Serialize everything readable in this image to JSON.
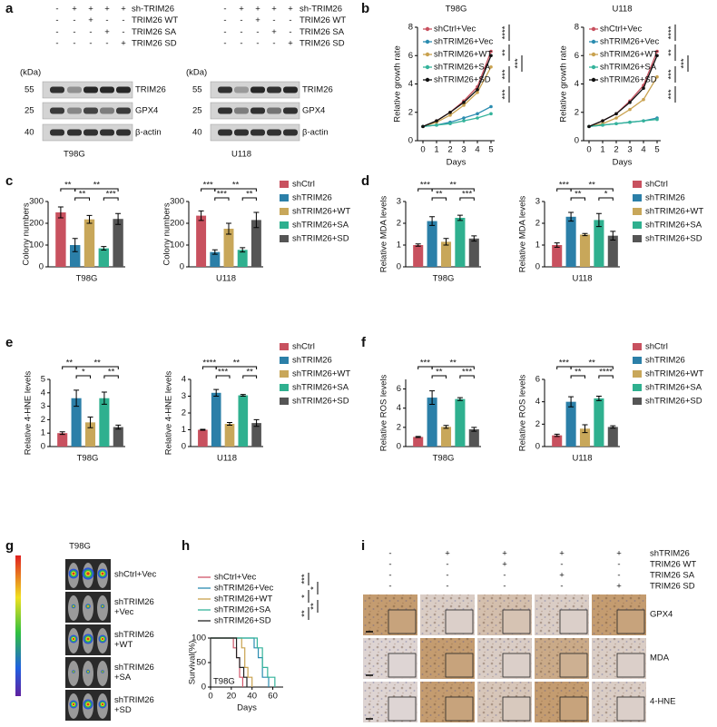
{
  "panel_labels": [
    "a",
    "b",
    "c",
    "d",
    "e",
    "f",
    "g",
    "h",
    "i"
  ],
  "western_blot": {
    "kda": "(kDa)",
    "treatments": [
      "sh-TRIM26",
      "TRIM26 WT",
      "TRIM26 SA",
      "TRIM26 SD"
    ],
    "signs": [
      [
        "-",
        "+",
        "+",
        "+",
        "+"
      ],
      [
        "-",
        "-",
        "+",
        "-",
        "-"
      ],
      [
        "-",
        "-",
        "-",
        "+",
        "-"
      ],
      [
        "-",
        "-",
        "-",
        "-",
        "+"
      ]
    ],
    "markers": [
      "55",
      "25",
      "40"
    ],
    "proteins": [
      "TRIM26",
      "GPX4",
      "β-actin"
    ],
    "cell_lines": [
      "T98G",
      "U118"
    ]
  },
  "imaging": {
    "title": "T98G",
    "groups": [
      [
        "shCtrl+Vec"
      ],
      [
        "shTRIM26",
        "+Vec"
      ],
      [
        "shTRIM26",
        "+WT"
      ],
      [
        "shTRIM26",
        "+SA"
      ],
      [
        "shTRIM26",
        "+SD"
      ]
    ]
  },
  "ihc": {
    "treatments": [
      "shTRIM26",
      "TRIM26 WT",
      "TRIM26 SA",
      "TRIM26 SD"
    ],
    "signs": [
      [
        "-",
        "+",
        "+",
        "+",
        "+"
      ],
      [
        "-",
        "-",
        "+",
        "-",
        "-"
      ],
      [
        "-",
        "-",
        "-",
        "+",
        "-"
      ],
      [
        "-",
        "-",
        "-",
        "-",
        "+"
      ]
    ],
    "stains": [
      "GPX4",
      "MDA",
      "4-HNE"
    ]
  },
  "chart_data": [
    {
      "type": "line",
      "xlabel": "Days",
      "ylabel": "Relative growth rate",
      "legend": [
        "shCtrl+Vec",
        "shTRIM26+Vec",
        "shTRIM26+WT",
        "shTRIM26+SA",
        "shTRIM26+SD"
      ],
      "colors": [
        "#c8515f",
        "#2b8cb0",
        "#c9a24f",
        "#34b39b",
        "#111111"
      ],
      "xlim": [
        0,
        5
      ],
      "xticks": [
        0,
        1,
        2,
        3,
        4,
        5
      ],
      "ylim": [
        0,
        8
      ],
      "yticks": [
        0,
        2,
        4,
        6,
        8
      ],
      "panels": [
        {
          "title": "T98G",
          "series": [
            [
              1,
              1.4,
              2.0,
              2.8,
              3.8,
              6.3
            ],
            [
              1,
              1.1,
              1.3,
              1.6,
              1.9,
              2.4
            ],
            [
              1,
              1.3,
              1.8,
              2.5,
              3.4,
              5.2
            ],
            [
              1,
              1.1,
              1.2,
              1.4,
              1.6,
              1.9
            ],
            [
              1,
              1.4,
              2.0,
              2.7,
              3.6,
              6.0
            ]
          ],
          "annotations": [
            "****",
            "**",
            "***",
            "***",
            "***"
          ]
        },
        {
          "title": "U118",
          "series": [
            [
              1,
              1.4,
              1.9,
              2.8,
              3.9,
              6.3
            ],
            [
              1,
              1.1,
              1.2,
              1.3,
              1.4,
              1.6
            ],
            [
              1,
              1.2,
              1.6,
              2.2,
              2.9,
              4.5
            ],
            [
              1,
              1.1,
              1.2,
              1.3,
              1.4,
              1.5
            ],
            [
              1,
              1.4,
              1.9,
              2.7,
              3.7,
              6.0
            ]
          ],
          "annotations": [
            "****",
            "**",
            "***",
            "***",
            "***"
          ]
        }
      ]
    },
    {
      "type": "bar",
      "ylabel": "Colony numbers",
      "legend": [
        "shCtrl",
        "shTRIM26",
        "shTRIM26+WT",
        "shTRIM26+SA",
        "shTRIM26+SD"
      ],
      "colors": [
        "#c8515f",
        "#2b7fa8",
        "#c8a75a",
        "#2fb08f",
        "#555555"
      ],
      "groups": [
        {
          "xlabel": "T98G",
          "ylim": [
            0,
            300
          ],
          "yticks": [
            0,
            100,
            200,
            300
          ],
          "values": [
            250,
            100,
            218,
            85,
            220
          ],
          "errors": [
            25,
            30,
            18,
            8,
            25
          ],
          "annotations": [
            "**",
            "**",
            "**",
            "***"
          ]
        },
        {
          "xlabel": "U118",
          "ylim": [
            0,
            300
          ],
          "yticks": [
            0,
            100,
            200,
            300
          ],
          "values": [
            235,
            68,
            175,
            78,
            215
          ],
          "errors": [
            22,
            10,
            25,
            10,
            35
          ],
          "annotations": [
            "***",
            "**",
            "***",
            "**"
          ]
        }
      ]
    },
    {
      "type": "bar",
      "ylabel": "Relative MDA levels",
      "legend": [
        "shCtrl",
        "shTRIM26",
        "shTRIM26+WT",
        "shTRIM26+SA",
        "shTRIM26+SD"
      ],
      "colors": [
        "#c8515f",
        "#2b7fa8",
        "#c8a75a",
        "#2fb08f",
        "#555555"
      ],
      "groups": [
        {
          "xlabel": "T98G",
          "ylim": [
            0,
            3
          ],
          "yticks": [
            0,
            1,
            2,
            3
          ],
          "values": [
            1,
            2.1,
            1.15,
            2.25,
            1.3
          ],
          "errors": [
            0.05,
            0.2,
            0.15,
            0.12,
            0.12
          ],
          "annotations": [
            "***",
            "**",
            "**",
            "***"
          ]
        },
        {
          "xlabel": "U118",
          "ylim": [
            0,
            3
          ],
          "yticks": [
            0,
            1,
            2,
            3
          ],
          "values": [
            1,
            2.3,
            1.48,
            2.15,
            1.43
          ],
          "errors": [
            0.1,
            0.2,
            0.05,
            0.3,
            0.2
          ],
          "annotations": [
            "***",
            "**",
            "**",
            "*"
          ]
        }
      ]
    },
    {
      "type": "bar",
      "ylabel": "Relative 4-HNE levels",
      "legend": [
        "shCtrl",
        "shTRIM26",
        "shTRIM26+WT",
        "shTRIM26+SA",
        "shTRIM26+SD"
      ],
      "colors": [
        "#c8515f",
        "#2b7fa8",
        "#c8a75a",
        "#2fb08f",
        "#555555"
      ],
      "groups": [
        {
          "xlabel": "T98G",
          "ylim": [
            0,
            5
          ],
          "yticks": [
            0,
            1,
            2,
            3,
            4,
            5
          ],
          "values": [
            1,
            3.6,
            1.8,
            3.6,
            1.45
          ],
          "errors": [
            0.1,
            0.6,
            0.4,
            0.45,
            0.15
          ],
          "annotations": [
            "**",
            "**",
            "*",
            "**"
          ]
        },
        {
          "xlabel": "U118",
          "ylim": [
            0,
            4
          ],
          "yticks": [
            0,
            1,
            2,
            3,
            4
          ],
          "values": [
            1,
            3.2,
            1.35,
            3.05,
            1.4
          ],
          "errors": [
            0.03,
            0.2,
            0.08,
            0.05,
            0.2
          ],
          "annotations": [
            "****",
            "**",
            "***",
            "**"
          ]
        }
      ]
    },
    {
      "type": "bar",
      "ylabel": "Relative ROS levels",
      "legend": [
        "shCtrl",
        "shTRIM26",
        "shTRIM26+WT",
        "shTRIM26+SA",
        "shTRIM26+SD"
      ],
      "colors": [
        "#c8515f",
        "#2b7fa8",
        "#c8a75a",
        "#2fb08f",
        "#555555"
      ],
      "groups": [
        {
          "xlabel": "T98G",
          "ylim": [
            0,
            7
          ],
          "yticks": [
            0,
            2,
            4,
            6
          ],
          "values": [
            1,
            5.1,
            2.05,
            4.95,
            1.8
          ],
          "errors": [
            0.05,
            0.7,
            0.15,
            0.15,
            0.2
          ],
          "annotations": [
            "***",
            "**",
            "**",
            "***"
          ]
        },
        {
          "xlabel": "U118",
          "ylim": [
            0,
            6
          ],
          "yticks": [
            0,
            2,
            4,
            6
          ],
          "values": [
            1,
            4,
            1.6,
            4.3,
            1.75
          ],
          "errors": [
            0.1,
            0.45,
            0.35,
            0.2,
            0.1
          ],
          "annotations": [
            "***",
            "**",
            "**",
            "****"
          ]
        }
      ]
    },
    {
      "type": "step",
      "xlabel": "Days",
      "ylabel": "Survival(%)",
      "note": "T98G",
      "xlim": [
        0,
        70
      ],
      "xticks": [
        0,
        20,
        40,
        60
      ],
      "ylim": [
        0,
        100
      ],
      "yticks": [
        0,
        50,
        100
      ],
      "series": [
        {
          "name": "shCtrl+Vec",
          "color": "#d0566a",
          "x": [
            0,
            22,
            25,
            28,
            31
          ],
          "values": [
            100,
            80,
            60,
            20,
            0
          ]
        },
        {
          "name": "shTRIM26+Vec",
          "color": "#2b8cb0",
          "x": [
            0,
            42,
            46,
            50,
            56
          ],
          "values": [
            100,
            80,
            60,
            20,
            0
          ]
        },
        {
          "name": "shTRIM26+WT",
          "color": "#c9a24f",
          "x": [
            0,
            30,
            33,
            36,
            40
          ],
          "values": [
            100,
            80,
            40,
            20,
            0
          ]
        },
        {
          "name": "shTRIM26+SA",
          "color": "#34b39b",
          "x": [
            0,
            45,
            50,
            55,
            62
          ],
          "values": [
            100,
            80,
            40,
            20,
            0
          ]
        },
        {
          "name": "shTRIM26+SD",
          "color": "#222222",
          "x": [
            0,
            25,
            28,
            32,
            35
          ],
          "values": [
            100,
            60,
            40,
            20,
            0
          ]
        }
      ],
      "annotations": [
        "***",
        "*",
        "*",
        "**",
        "**"
      ]
    }
  ]
}
